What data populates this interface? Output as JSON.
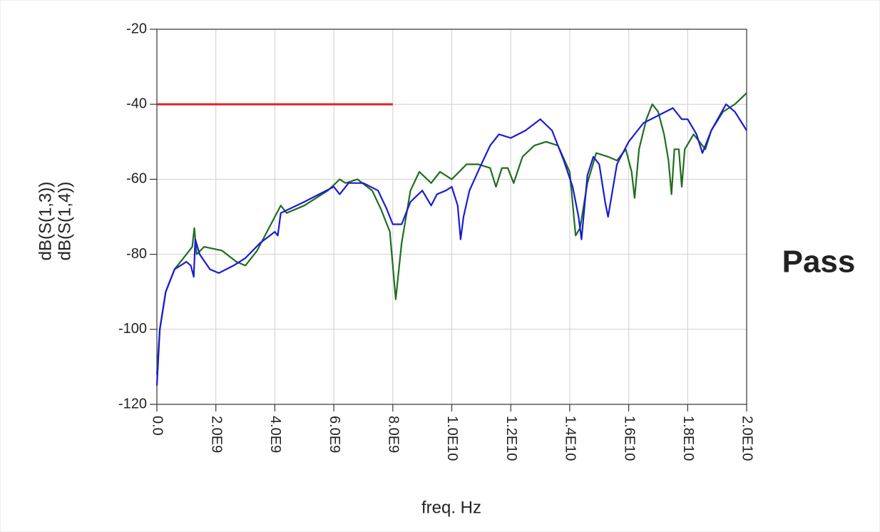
{
  "chart_data": {
    "type": "line",
    "x_label": "freq. Hz",
    "annotation": "Pass",
    "annotation_color": "#1a1ad8",
    "xlim": [
      0,
      20000000000.0
    ],
    "ylim": [
      -120,
      -20
    ],
    "xticks": [
      {
        "value": 0,
        "label": "0.0"
      },
      {
        "value": 2000000000.0,
        "label": "2.0E9"
      },
      {
        "value": 4000000000.0,
        "label": "4.0E9"
      },
      {
        "value": 6000000000.0,
        "label": "6.0E9"
      },
      {
        "value": 8000000000.0,
        "label": "8.0E9"
      },
      {
        "value": 10000000000.0,
        "label": "1.0E10"
      },
      {
        "value": 12000000000.0,
        "label": "1.2E10"
      },
      {
        "value": 14000000000.0,
        "label": "1.4E10"
      },
      {
        "value": 16000000000.0,
        "label": "1.6E10"
      },
      {
        "value": 18000000000.0,
        "label": "1.8E10"
      },
      {
        "value": 20000000000.0,
        "label": "2.0E10"
      }
    ],
    "yticks": [
      -20,
      -40,
      -60,
      -80,
      -100,
      -120
    ],
    "grid": true,
    "limit_line": {
      "x": [
        0,
        8000000000.0
      ],
      "values": [
        -40,
        -40
      ],
      "color": "#e02424"
    },
    "series": [
      {
        "name": "dB(S(1,3))",
        "color": "#1a1ad8",
        "x": [
          0,
          100000000.0,
          300000000.0,
          600000000.0,
          1000000000.0,
          1150000000.0,
          1250000000.0,
          1300000000.0,
          1450000000.0,
          1800000000.0,
          2100000000.0,
          2600000000.0,
          3000000000.0,
          3500000000.0,
          4000000000.0,
          4100000000.0,
          4200000000.0,
          5000000000.0,
          6000000000.0,
          6200000000.0,
          6500000000.0,
          7000000000.0,
          7500000000.0,
          7800000000.0,
          8000000000.0,
          8300000000.0,
          8600000000.0,
          9000000000.0,
          9300000000.0,
          9500000000.0,
          9800000000.0,
          10000000000.0,
          10200000000.0,
          10300000000.0,
          10400000000.0,
          10600000000.0,
          11000000000.0,
          11300000000.0,
          11600000000.0,
          12000000000.0,
          12500000000.0,
          13000000000.0,
          13400000000.0,
          13800000000.0,
          14100000000.0,
          14300000000.0,
          14400000000.0,
          14600000000.0,
          14800000000.0,
          15000000000.0,
          15200000000.0,
          15300000000.0,
          15600000000.0,
          16000000000.0,
          16500000000.0,
          17000000000.0,
          17500000000.0,
          17800000000.0,
          18000000000.0,
          18300000000.0,
          18500000000.0,
          18800000000.0,
          19300000000.0,
          19600000000.0,
          20000000000.0
        ],
        "values": [
          -115,
          -100,
          -90,
          -84,
          -82,
          -83,
          -86,
          -76,
          -80,
          -84,
          -85,
          -83,
          -81,
          -77,
          -74,
          -75,
          -69,
          -66,
          -62,
          -64,
          -61,
          -61,
          -63,
          -68,
          -72,
          -72,
          -66,
          -63,
          -67,
          -64,
          -63,
          -62,
          -67,
          -76,
          -70,
          -63,
          -56,
          -51,
          -48,
          -49,
          -47,
          -44,
          -47,
          -55,
          -62,
          -70,
          -76,
          -59,
          -54,
          -56,
          -66,
          -70,
          -56,
          -50,
          -45,
          -43,
          -41,
          -44,
          -44,
          -48,
          -53,
          -47,
          -40,
          -42,
          -47
        ]
      },
      {
        "name": "dB(S(1,4))",
        "color": "#1e6e1e",
        "x": [
          0,
          100000000.0,
          300000000.0,
          600000000.0,
          1000000000.0,
          1200000000.0,
          1270000000.0,
          1350000000.0,
          1600000000.0,
          2200000000.0,
          2700000000.0,
          3000000000.0,
          3400000000.0,
          4000000000.0,
          4200000000.0,
          4400000000.0,
          5000000000.0,
          5800000000.0,
          6200000000.0,
          6400000000.0,
          6800000000.0,
          7300000000.0,
          7600000000.0,
          7900000000.0,
          8100000000.0,
          8300000000.0,
          8600000000.0,
          8900000000.0,
          9300000000.0,
          9600000000.0,
          10000000000.0,
          10500000000.0,
          10900000000.0,
          11300000000.0,
          11500000000.0,
          11700000000.0,
          11900000000.0,
          12100000000.0,
          12400000000.0,
          12800000000.0,
          13200000000.0,
          13600000000.0,
          14000000000.0,
          14200000000.0,
          14350000000.0,
          14600000000.0,
          14900000000.0,
          15300000000.0,
          15600000000.0,
          15900000000.0,
          16100000000.0,
          16200000000.0,
          16350000000.0,
          16600000000.0,
          16800000000.0,
          17000000000.0,
          17200000000.0,
          17350000000.0,
          17450000000.0,
          17550000000.0,
          17700000000.0,
          17800000000.0,
          17900000000.0,
          18200000000.0,
          18500000000.0,
          18600000000.0,
          18800000000.0,
          19200000000.0,
          19600000000.0,
          20000000000.0
        ],
        "values": [
          -112,
          -100,
          -90,
          -84,
          -80,
          -78,
          -73,
          -80,
          -78,
          -79,
          -82,
          -83,
          -79,
          -70,
          -67,
          -69,
          -67,
          -63,
          -60,
          -61,
          -60,
          -63,
          -68,
          -74,
          -92,
          -77,
          -63,
          -58,
          -61,
          -58,
          -60,
          -56,
          -56,
          -57,
          -62,
          -57,
          -57,
          -61,
          -54,
          -51,
          -50,
          -51,
          -58,
          -75,
          -73,
          -61,
          -53,
          -54,
          -55,
          -52,
          -58,
          -65,
          -52,
          -44,
          -40,
          -42,
          -48,
          -55,
          -64,
          -52,
          -52,
          -62,
          -52,
          -48,
          -51,
          -52,
          -47,
          -42,
          -40,
          -37
        ]
      }
    ]
  }
}
